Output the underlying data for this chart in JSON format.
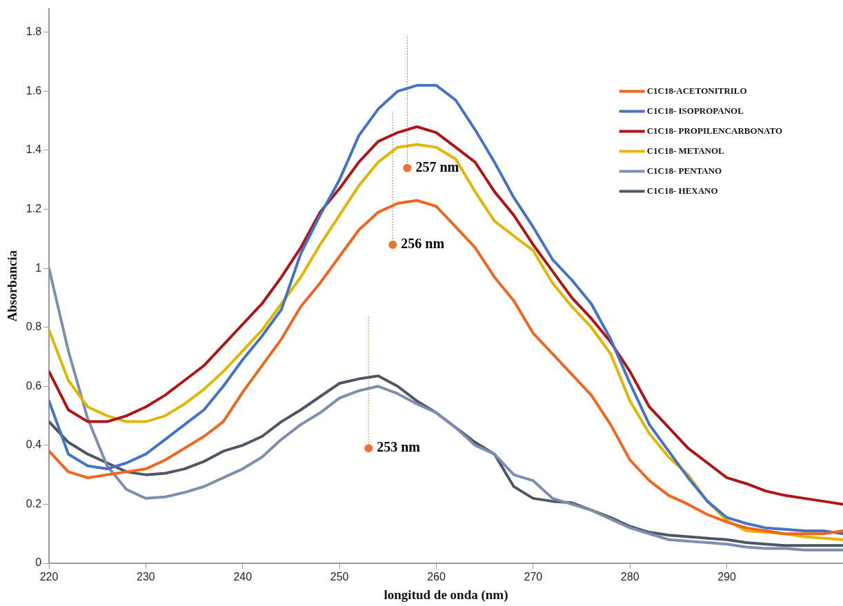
{
  "chart_data": {
    "type": "line",
    "xlabel": "longitud de onda (nm)",
    "ylabel": "Absorbancia",
    "x": [
      220,
      222,
      224,
      226,
      228,
      230,
      232,
      234,
      236,
      238,
      240,
      242,
      244,
      246,
      248,
      250,
      252,
      254,
      256,
      258,
      260,
      262,
      264,
      266,
      268,
      270,
      272,
      274,
      276,
      278,
      280,
      282,
      284,
      286,
      288,
      290,
      292,
      294,
      296,
      298,
      300,
      302
    ],
    "series": [
      {
        "name": "C1C18-ACETONITRILO",
        "color": "#f0661e",
        "values": [
          0.38,
          0.31,
          0.29,
          0.3,
          0.31,
          0.32,
          0.35,
          0.39,
          0.43,
          0.48,
          0.58,
          0.67,
          0.76,
          0.87,
          0.95,
          1.04,
          1.13,
          1.19,
          1.22,
          1.23,
          1.21,
          1.14,
          1.07,
          0.97,
          0.89,
          0.78,
          0.71,
          0.64,
          0.57,
          0.47,
          0.35,
          0.28,
          0.23,
          0.2,
          0.165,
          0.14,
          0.12,
          0.11,
          0.1,
          0.1,
          0.1,
          0.11
        ]
      },
      {
        "name": "C1C18- ISOPROPANOL",
        "color": "#4472c4",
        "values": [
          0.55,
          0.37,
          0.33,
          0.32,
          0.34,
          0.37,
          0.42,
          0.47,
          0.52,
          0.6,
          0.69,
          0.77,
          0.86,
          1.05,
          1.18,
          1.3,
          1.45,
          1.54,
          1.6,
          1.62,
          1.62,
          1.57,
          1.47,
          1.36,
          1.24,
          1.14,
          1.03,
          0.96,
          0.88,
          0.76,
          0.61,
          0.47,
          0.38,
          0.29,
          0.21,
          0.155,
          0.135,
          0.12,
          0.115,
          0.11,
          0.11,
          0.1
        ]
      },
      {
        "name": "C1C18- PROPILENCARBONATO",
        "color": "#b01515",
        "values": [
          0.65,
          0.52,
          0.48,
          0.48,
          0.5,
          0.53,
          0.57,
          0.62,
          0.67,
          0.74,
          0.81,
          0.88,
          0.97,
          1.07,
          1.19,
          1.27,
          1.36,
          1.43,
          1.46,
          1.48,
          1.46,
          1.41,
          1.36,
          1.26,
          1.18,
          1.08,
          0.99,
          0.9,
          0.83,
          0.75,
          0.65,
          0.53,
          0.46,
          0.39,
          0.34,
          0.29,
          0.27,
          0.245,
          0.23,
          0.22,
          0.21,
          0.2
        ]
      },
      {
        "name": "C1C18- METANOL",
        "color": "#e3b500",
        "values": [
          0.79,
          0.62,
          0.53,
          0.5,
          0.48,
          0.48,
          0.5,
          0.54,
          0.59,
          0.65,
          0.72,
          0.79,
          0.88,
          0.97,
          1.08,
          1.18,
          1.28,
          1.36,
          1.41,
          1.42,
          1.41,
          1.37,
          1.26,
          1.16,
          1.11,
          1.06,
          0.95,
          0.87,
          0.8,
          0.71,
          0.55,
          0.44,
          0.36,
          0.3,
          0.21,
          0.145,
          0.11,
          0.105,
          0.1,
          0.09,
          0.085,
          0.08
        ]
      },
      {
        "name": "C1C18- PENTANO",
        "color": "#7d8db0",
        "values": [
          1.0,
          0.72,
          0.49,
          0.33,
          0.25,
          0.22,
          0.225,
          0.24,
          0.26,
          0.29,
          0.32,
          0.36,
          0.42,
          0.47,
          0.51,
          0.56,
          0.585,
          0.6,
          0.575,
          0.54,
          0.51,
          0.46,
          0.4,
          0.37,
          0.3,
          0.28,
          0.22,
          0.2,
          0.18,
          0.15,
          0.12,
          0.1,
          0.08,
          0.075,
          0.07,
          0.065,
          0.055,
          0.05,
          0.05,
          0.045,
          0.045,
          0.045
        ]
      },
      {
        "name": "C1C18- HEXANO",
        "color": "#4d5763",
        "values": [
          0.48,
          0.41,
          0.37,
          0.34,
          0.31,
          0.3,
          0.305,
          0.32,
          0.345,
          0.38,
          0.4,
          0.43,
          0.48,
          0.52,
          0.565,
          0.61,
          0.625,
          0.635,
          0.6,
          0.55,
          0.51,
          0.46,
          0.41,
          0.37,
          0.26,
          0.22,
          0.21,
          0.205,
          0.18,
          0.155,
          0.125,
          0.105,
          0.095,
          0.09,
          0.085,
          0.08,
          0.07,
          0.065,
          0.06,
          0.06,
          0.06,
          0.06
        ]
      }
    ],
    "xlim": [
      220,
      302
    ],
    "xticks": [
      220,
      230,
      240,
      250,
      260,
      270,
      280,
      290
    ],
    "ylim": [
      0,
      1.88
    ],
    "yticks": [
      0,
      0.2,
      0.4,
      0.6,
      0.8,
      1,
      1.2,
      1.4,
      1.6,
      1.8
    ],
    "grid": false,
    "legend": "top right",
    "marker": "none",
    "line_style": "solid",
    "annotations": [
      {
        "text": "257 nm",
        "x": 257,
        "y": 1.34
      },
      {
        "text": "256 nm",
        "x": 255.5,
        "y": 1.08
      },
      {
        "text": "253 nm",
        "x": 253,
        "y": 0.39
      }
    ]
  }
}
